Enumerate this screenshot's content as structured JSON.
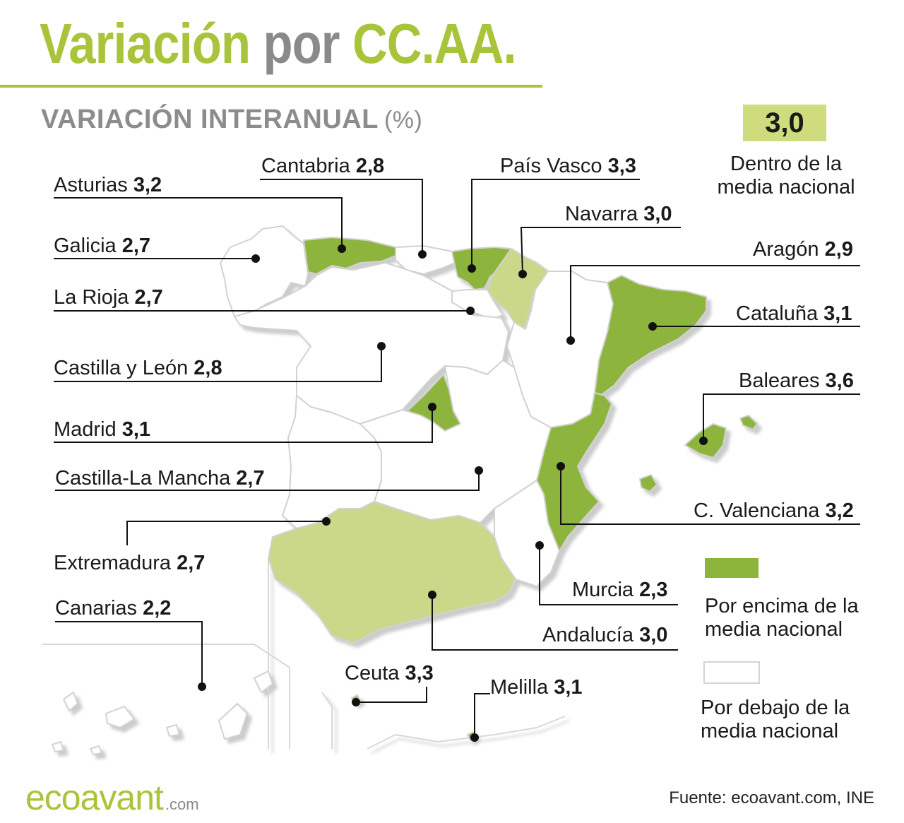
{
  "title": {
    "part1": "Variación",
    "part2": "por",
    "part3": "CC.AA."
  },
  "subtitle": {
    "text": "VARIACIÓN INTERANUAL",
    "unit": "(%)"
  },
  "national_average": {
    "value": "3,0",
    "note": "Dentro de la media nacional"
  },
  "legend": {
    "above": "Por encima de la media nacional",
    "below": "Por debajo de la media nacional"
  },
  "colors": {
    "above": "#8db53c",
    "within": "#cbd88a",
    "below": "#ffffff",
    "accent": "#a8c43a",
    "outline": "#d4d4d4"
  },
  "regions": [
    {
      "id": "asturias",
      "name": "Asturias",
      "value": "3,2",
      "category": "above"
    },
    {
      "id": "cantabria",
      "name": "Cantabria",
      "value": "2,8",
      "category": "below"
    },
    {
      "id": "pais-vasco",
      "name": "País Vasco",
      "value": "3,3",
      "category": "above"
    },
    {
      "id": "navarra",
      "name": "Navarra",
      "value": "3,0",
      "category": "within"
    },
    {
      "id": "galicia",
      "name": "Galicia",
      "value": "2,7",
      "category": "below"
    },
    {
      "id": "aragon",
      "name": "Aragón",
      "value": "2,9",
      "category": "below"
    },
    {
      "id": "la-rioja",
      "name": "La Rioja",
      "value": "2,7",
      "category": "below"
    },
    {
      "id": "cataluna",
      "name": "Cataluña",
      "value": "3,1",
      "category": "above"
    },
    {
      "id": "castilla-leon",
      "name": "Castilla y León",
      "value": "2,8",
      "category": "below"
    },
    {
      "id": "baleares",
      "name": "Baleares",
      "value": "3,6",
      "category": "above"
    },
    {
      "id": "madrid",
      "name": "Madrid",
      "value": "3,1",
      "category": "above"
    },
    {
      "id": "castilla-la-mancha",
      "name": "Castilla-La Mancha",
      "value": "2,7",
      "category": "below"
    },
    {
      "id": "c-valenciana",
      "name": "C. Valenciana",
      "value": "3,2",
      "category": "above"
    },
    {
      "id": "extremadura",
      "name": "Extremadura",
      "value": "2,7",
      "category": "below"
    },
    {
      "id": "murcia",
      "name": "Murcia",
      "value": "2,3",
      "category": "below"
    },
    {
      "id": "canarias",
      "name": "Canarias",
      "value": "2,2",
      "category": "below"
    },
    {
      "id": "andalucia",
      "name": "Andalucía",
      "value": "3,0",
      "category": "within"
    },
    {
      "id": "ceuta",
      "name": "Ceuta",
      "value": "3,3",
      "category": "above"
    },
    {
      "id": "melilla",
      "name": "Melilla",
      "value": "3,1",
      "category": "above"
    }
  ],
  "brand": {
    "logo": "ecoavant",
    "logo_suffix": ".com"
  },
  "source": "Fuente: ecoavant.com, INE"
}
